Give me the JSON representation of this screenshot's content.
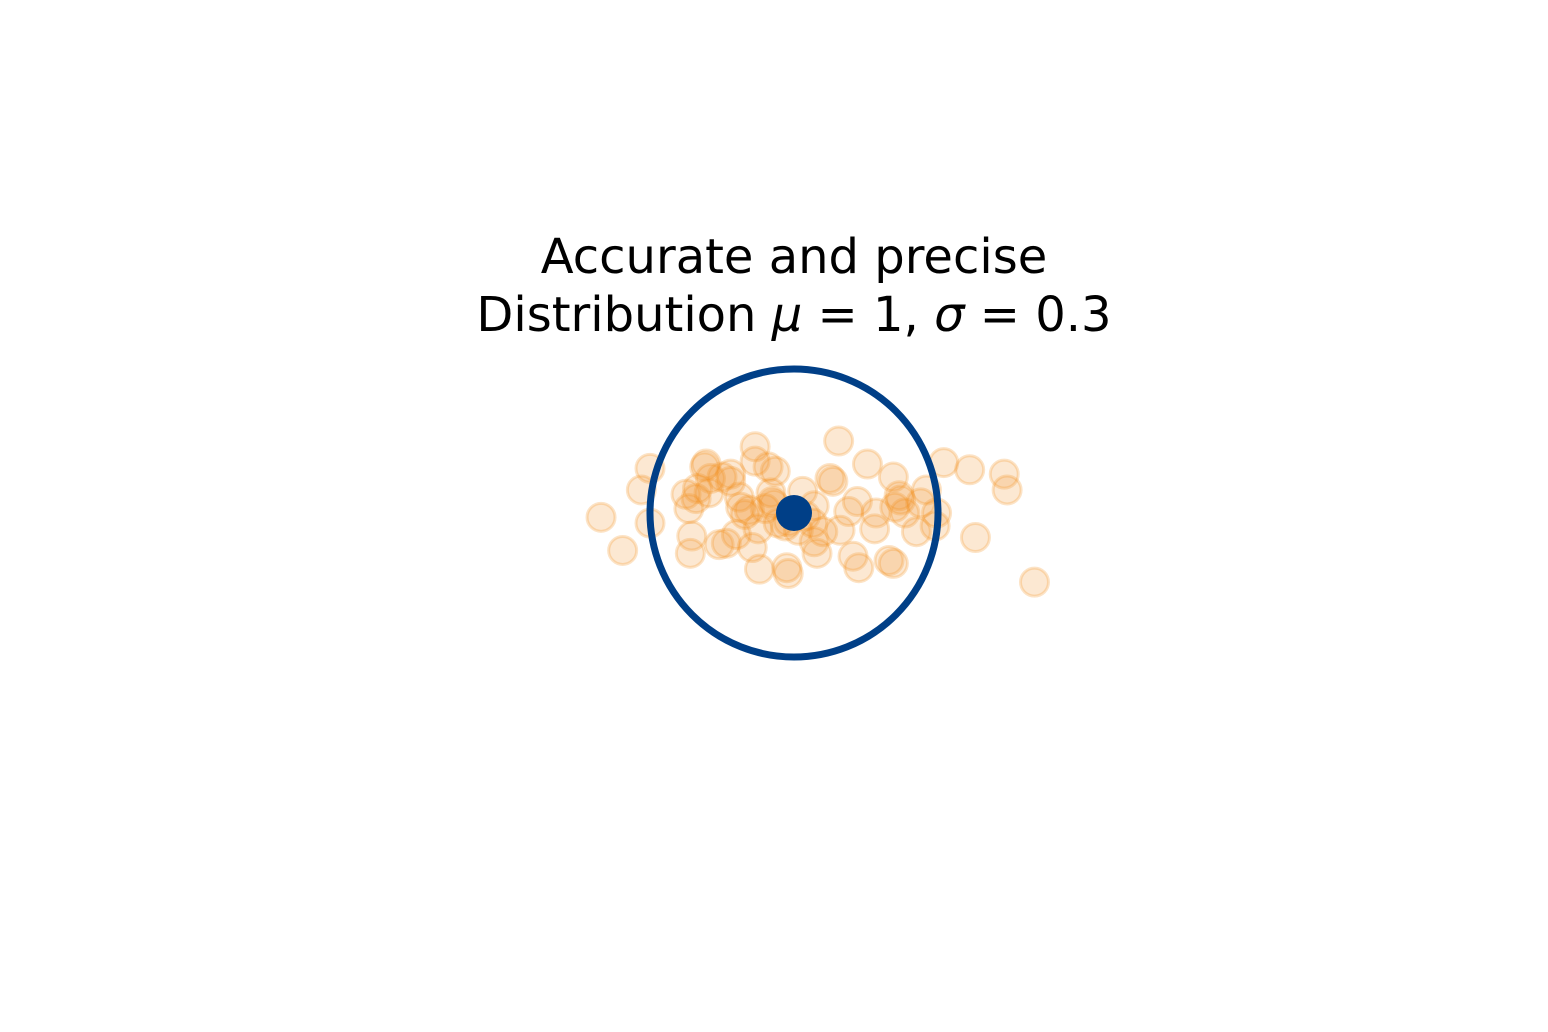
{
  "chart_data": {
    "type": "scatter",
    "title_line1": "Accurate and precise",
    "title_line2": {
      "prefix": "Distribution ",
      "mu_symbol": "μ",
      "mu_value": "1",
      "sigma_symbol": "σ",
      "sigma_value": "0.3",
      "equals": " = ",
      "separator": ", "
    },
    "axes_visible": false,
    "xlim": [
      -3,
      3
    ],
    "ylim": [
      -3,
      3
    ],
    "target": {
      "center": [
        0,
        0
      ],
      "ring_radius": 1,
      "ring_color": "#003f87",
      "center_marker_color": "#003f87"
    },
    "points_color": "#f28e1c",
    "points_alpha": 0.2,
    "points": [
      [
        -1.34,
        -0.03
      ],
      [
        -1.19,
        -0.26
      ],
      [
        -1.06,
        0.16
      ],
      [
        -1.0,
        0.31
      ],
      [
        -1.0,
        -0.07
      ],
      [
        -0.75,
        0.13
      ],
      [
        -0.73,
        0.03
      ],
      [
        -0.72,
        -0.28
      ],
      [
        -0.71,
        -0.16
      ],
      [
        -0.68,
        0.1
      ],
      [
        -0.67,
        0.17
      ],
      [
        -0.62,
        0.32
      ],
      [
        -0.61,
        0.34
      ],
      [
        -0.59,
        0.14
      ],
      [
        -0.58,
        0.24
      ],
      [
        -0.52,
        -0.22
      ],
      [
        -0.5,
        0.25
      ],
      [
        -0.47,
        -0.21
      ],
      [
        -0.44,
        0.27
      ],
      [
        -0.44,
        0.22
      ],
      [
        -0.4,
        -0.15
      ],
      [
        -0.38,
        0.11
      ],
      [
        -0.37,
        0.04
      ],
      [
        -0.34,
        -0.01
      ],
      [
        -0.31,
        0.02
      ],
      [
        -0.29,
        -0.24
      ],
      [
        -0.27,
        0.46
      ],
      [
        -0.27,
        0.36
      ],
      [
        -0.25,
        -0.11
      ],
      [
        -0.24,
        -0.39
      ],
      [
        -0.2,
        0.03
      ],
      [
        -0.18,
        0.32
      ],
      [
        -0.16,
        0.14
      ],
      [
        -0.15,
        0.08
      ],
      [
        -0.14,
        0.06
      ],
      [
        -0.13,
        0.29
      ],
      [
        -0.11,
        -0.07
      ],
      [
        -0.06,
        -0.09
      ],
      [
        -0.04,
        -0.06
      ],
      [
        -0.05,
        -0.38
      ],
      [
        -0.04,
        -0.42
      ],
      [
        0.03,
        -0.12
      ],
      [
        0.06,
        0.15
      ],
      [
        0.08,
        -0.02
      ],
      [
        0.13,
        -0.07
      ],
      [
        0.14,
        0.05
      ],
      [
        0.14,
        -0.2
      ],
      [
        0.16,
        -0.28
      ],
      [
        0.2,
        -0.13
      ],
      [
        0.25,
        0.24
      ],
      [
        0.27,
        0.22
      ],
      [
        0.31,
        0.5
      ],
      [
        0.32,
        -0.12
      ],
      [
        0.38,
        0.01
      ],
      [
        0.41,
        -0.3
      ],
      [
        0.44,
        0.08
      ],
      [
        0.45,
        -0.38
      ],
      [
        0.51,
        0.34
      ],
      [
        0.56,
        -0.11
      ],
      [
        0.57,
        0.0
      ],
      [
        0.66,
        -0.33
      ],
      [
        0.69,
        -0.35
      ],
      [
        0.69,
        0.25
      ],
      [
        0.7,
        0.04
      ],
      [
        0.73,
        0.12
      ],
      [
        0.74,
        0.09
      ],
      [
        0.77,
        0.0
      ],
      [
        0.85,
        -0.13
      ],
      [
        0.88,
        0.07
      ],
      [
        0.92,
        0.16
      ],
      [
        0.98,
        -0.09
      ],
      [
        0.99,
        0.0
      ],
      [
        1.04,
        0.35
      ],
      [
        1.26,
        -0.17
      ],
      [
        1.22,
        0.3
      ],
      [
        1.46,
        0.27
      ],
      [
        1.48,
        0.16
      ],
      [
        1.67,
        -0.48
      ]
    ]
  }
}
